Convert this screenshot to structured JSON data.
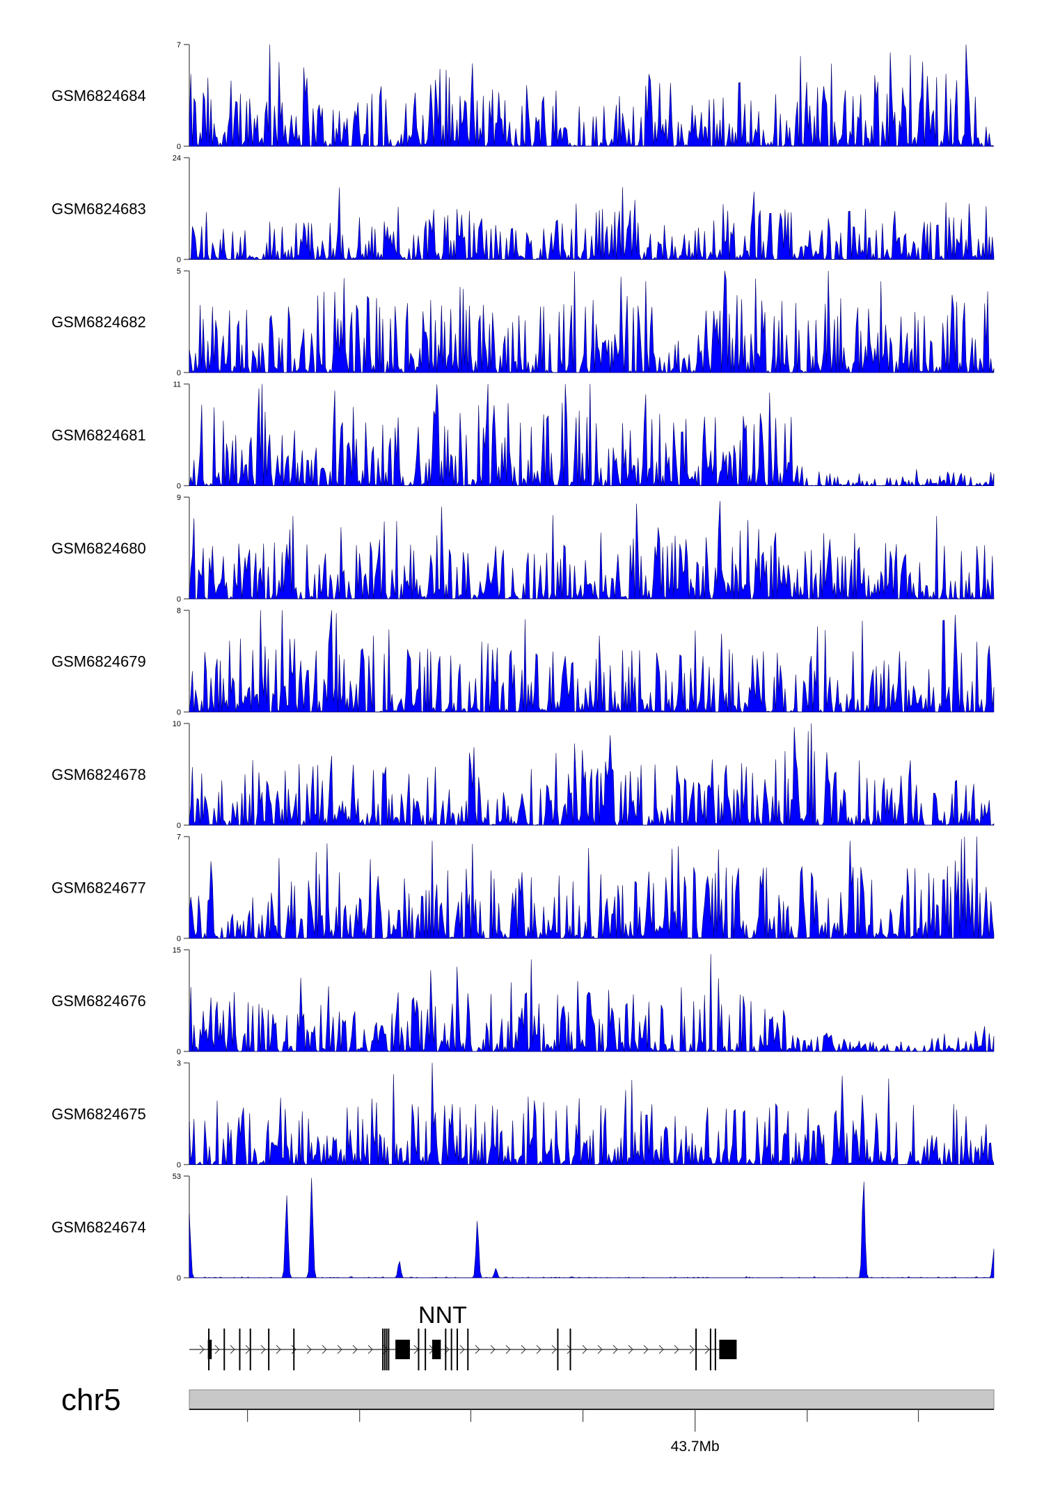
{
  "chart_data": {
    "type": "area",
    "title": "",
    "xlabel": "",
    "chromosome": "chr5",
    "gene": {
      "name": "NNT",
      "strand": "+"
    },
    "genome_axis": {
      "tick_count": 7,
      "labeled_tick_index": 4,
      "label": "43.7Mb"
    },
    "color": "#0000ff",
    "tracks": [
      {
        "name": "GSM6824684",
        "ylim": [
          0,
          7
        ],
        "envelope": [
          5,
          5,
          6,
          4,
          5,
          4,
          5,
          4,
          5,
          4,
          4,
          5,
          4,
          5,
          4,
          5,
          4,
          5,
          6,
          5
        ]
      },
      {
        "name": "GSM6824683",
        "ylim": [
          0,
          24
        ],
        "envelope": [
          12,
          8,
          10,
          12,
          10,
          10,
          12,
          10,
          8,
          10,
          12,
          10,
          8,
          10,
          12,
          8,
          12,
          10,
          10,
          16
        ]
      },
      {
        "name": "GSM6824682",
        "ylim": [
          0,
          5
        ],
        "envelope": [
          3.5,
          3.5,
          4,
          4,
          4,
          4,
          3.5,
          3.5,
          4,
          4,
          4,
          3.5,
          3.5,
          4,
          4,
          4,
          3.5,
          4,
          3.5,
          4
        ]
      },
      {
        "name": "GSM6824681",
        "ylim": [
          0,
          11
        ],
        "envelope": [
          9,
          8,
          6,
          8,
          7,
          8,
          9,
          9,
          8,
          8,
          7,
          7,
          8,
          9,
          8,
          1.5,
          1,
          1,
          1.2,
          1.5
        ]
      },
      {
        "name": "GSM6824680",
        "ylim": [
          0,
          9
        ],
        "envelope": [
          5,
          5,
          6,
          6,
          6,
          6,
          6,
          5,
          5,
          5,
          6,
          6,
          6,
          7,
          7,
          6,
          6,
          5,
          5,
          5
        ]
      },
      {
        "name": "GSM6824679",
        "ylim": [
          0,
          8
        ],
        "envelope": [
          6,
          6,
          6,
          6,
          5,
          5,
          5,
          5,
          5,
          5,
          5,
          5,
          5,
          6,
          5,
          5,
          5,
          5,
          5,
          6
        ]
      },
      {
        "name": "GSM6824678",
        "ylim": [
          0,
          10
        ],
        "envelope": [
          6,
          6,
          6,
          6,
          6,
          6,
          6,
          6,
          6,
          6,
          6,
          6,
          6,
          7,
          7,
          8,
          5,
          5,
          5,
          5
        ]
      },
      {
        "name": "GSM6824677",
        "ylim": [
          0,
          7
        ],
        "envelope": [
          4.5,
          4.5,
          4.5,
          4.5,
          4.5,
          4.5,
          5,
          5,
          5,
          5,
          5,
          5,
          5,
          5,
          5,
          5,
          5,
          5,
          5,
          5
        ]
      },
      {
        "name": "GSM6824676",
        "ylim": [
          0,
          15
        ],
        "envelope": [
          10,
          9,
          8,
          7,
          6,
          9,
          10,
          10,
          12,
          10,
          8,
          9,
          10,
          9,
          7,
          3,
          1.5,
          1.5,
          2,
          2.5
        ]
      },
      {
        "name": "GSM6824675",
        "ylim": [
          0,
          3
        ],
        "envelope": [
          1.8,
          1.8,
          1.8,
          1.8,
          2,
          2,
          2.2,
          1.8,
          2,
          2,
          1.8,
          1.8,
          1.8,
          1.8,
          1.8,
          1.8,
          1.8,
          1.8,
          1.8,
          1.8
        ]
      },
      {
        "name": "GSM6824674",
        "ylim": [
          0,
          53
        ],
        "envelope": [
          1,
          1,
          1,
          1,
          1,
          1,
          1,
          1,
          1,
          1,
          1,
          1,
          1,
          1,
          1,
          1,
          1,
          1,
          1,
          1
        ],
        "peaks": [
          {
            "x": 0.0,
            "y": 33
          },
          {
            "x": 0.121,
            "y": 43
          },
          {
            "x": 0.152,
            "y": 52
          },
          {
            "x": 0.261,
            "y": 9
          },
          {
            "x": 0.358,
            "y": 30
          },
          {
            "x": 0.381,
            "y": 5
          },
          {
            "x": 0.838,
            "y": 52
          },
          {
            "x": 1.0,
            "y": 15
          }
        ]
      }
    ]
  }
}
